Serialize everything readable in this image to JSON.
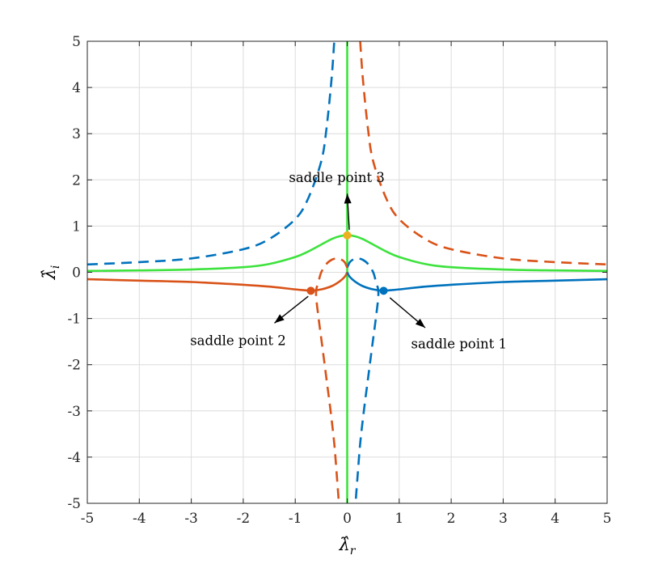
{
  "chart_data": {
    "type": "line",
    "title": "",
    "xlabel": "λ̂",
    "xlabel_sub": "r",
    "ylabel": "λ̂",
    "ylabel_sub": "i",
    "xlim": [
      -5,
      5
    ],
    "ylim": [
      -5,
      5
    ],
    "xticks": [
      -5,
      -4,
      -3,
      -2,
      -1,
      0,
      1,
      2,
      3,
      4,
      5
    ],
    "yticks": [
      -5,
      -4,
      -3,
      -2,
      -1,
      0,
      1,
      2,
      3,
      4,
      5
    ],
    "xtick_labels": [
      "-5",
      "-4",
      "-3",
      "-2",
      "-1",
      "0",
      "1",
      "2",
      "3",
      "4",
      "5"
    ],
    "ytick_labels": [
      "-5",
      "-4",
      "-3",
      "-2",
      "-1",
      "0",
      "1",
      "2",
      "3",
      "4",
      "5"
    ],
    "grid": true,
    "legend": "none",
    "series": [
      {
        "color": "#3de23d",
        "style": "solid",
        "x": [
          -5,
          -4,
          -3,
          -2,
          -1.5,
          -1,
          -0.75,
          -0.5,
          -0.3,
          -0.15,
          0,
          0.15,
          0.3,
          0.5,
          0.75,
          1,
          1.5,
          2,
          3,
          4,
          5
        ],
        "y": [
          0.03,
          0.04,
          0.06,
          0.11,
          0.18,
          0.33,
          0.45,
          0.6,
          0.72,
          0.78,
          0.8,
          0.78,
          0.72,
          0.6,
          0.45,
          0.33,
          0.18,
          0.11,
          0.06,
          0.04,
          0.03
        ]
      },
      {
        "color": "#3de23d",
        "style": "solid",
        "x": [
          0,
          0
        ],
        "y": [
          -5,
          5
        ]
      },
      {
        "color": "#d95319",
        "style": "solid",
        "x": [
          -5,
          -4,
          -3,
          -2,
          -1.5,
          -1,
          -0.8,
          -0.7,
          -0.5,
          -0.3,
          -0.15,
          -0.05,
          0
        ],
        "y": [
          -0.15,
          -0.18,
          -0.21,
          -0.27,
          -0.31,
          -0.37,
          -0.39,
          -0.4,
          -0.37,
          -0.3,
          -0.2,
          -0.1,
          0
        ]
      },
      {
        "color": "#0072bd",
        "style": "solid",
        "x": [
          0,
          0.05,
          0.15,
          0.3,
          0.5,
          0.7,
          0.8,
          1,
          1.5,
          2,
          3,
          4,
          5
        ],
        "y": [
          0,
          -0.1,
          -0.2,
          -0.3,
          -0.37,
          -0.4,
          -0.39,
          -0.37,
          -0.31,
          -0.27,
          -0.21,
          -0.18,
          -0.15
        ]
      },
      {
        "color": "#0072bd",
        "style": "dashed",
        "x": [
          -5,
          -4,
          -3,
          -2,
          -1.5,
          -1,
          -0.75,
          -0.5,
          -0.4,
          -0.3,
          -0.25
        ],
        "y": [
          0.17,
          0.22,
          0.3,
          0.5,
          0.72,
          1.15,
          1.6,
          2.4,
          3.1,
          4.2,
          5
        ]
      },
      {
        "color": "#0072bd",
        "style": "dashed",
        "x": [
          0,
          0.05,
          0.12,
          0.2,
          0.3,
          0.4,
          0.5,
          0.55,
          0.6,
          0.55,
          0.48,
          0.4,
          0.32,
          0.25,
          0.2,
          0.16
        ],
        "y": [
          0.1,
          0.22,
          0.28,
          0.3,
          0.27,
          0.18,
          0.0,
          -0.2,
          -0.45,
          -1.0,
          -1.6,
          -2.3,
          -3.0,
          -3.7,
          -4.4,
          -5
        ]
      },
      {
        "color": "#d95319",
        "style": "dashed",
        "x": [
          0.25,
          0.3,
          0.4,
          0.5,
          0.75,
          1,
          1.5,
          2,
          3,
          4,
          5
        ],
        "y": [
          5,
          4.2,
          3.1,
          2.4,
          1.6,
          1.15,
          0.72,
          0.5,
          0.3,
          0.22,
          0.17
        ]
      },
      {
        "color": "#d95319",
        "style": "dashed",
        "x": [
          0,
          -0.05,
          -0.12,
          -0.2,
          -0.3,
          -0.4,
          -0.5,
          -0.55,
          -0.6,
          -0.55,
          -0.48,
          -0.4,
          -0.32,
          -0.25,
          -0.2,
          -0.16
        ],
        "y": [
          0.1,
          0.22,
          0.28,
          0.3,
          0.27,
          0.18,
          0.0,
          -0.2,
          -0.45,
          -1.0,
          -1.6,
          -2.3,
          -3.0,
          -3.7,
          -4.4,
          -5
        ]
      }
    ],
    "points": [
      {
        "name": "saddle point 1",
        "x": 0.7,
        "y": -0.4,
        "color": "#0072bd"
      },
      {
        "name": "saddle point 2",
        "x": -0.7,
        "y": -0.4,
        "color": "#d95319"
      },
      {
        "name": "saddle point 3",
        "x": 0,
        "y": 0.8,
        "color": "#edb120"
      }
    ],
    "annotations": [
      {
        "text": "saddle point 3",
        "arrow_from": [
          0.04,
          0.92
        ],
        "arrow_to": [
          0,
          1.7
        ],
        "label_at": [
          -0.2,
          1.95
        ]
      },
      {
        "text": "saddle point 2",
        "arrow_from": [
          -0.75,
          -0.52
        ],
        "arrow_to": [
          -1.4,
          -1.1
        ],
        "label_at": [
          -2.1,
          -1.58
        ]
      },
      {
        "text": "saddle point 1",
        "arrow_from": [
          0.82,
          -0.55
        ],
        "arrow_to": [
          1.5,
          -1.2
        ],
        "label_at": [
          2.15,
          -1.65
        ]
      }
    ]
  }
}
